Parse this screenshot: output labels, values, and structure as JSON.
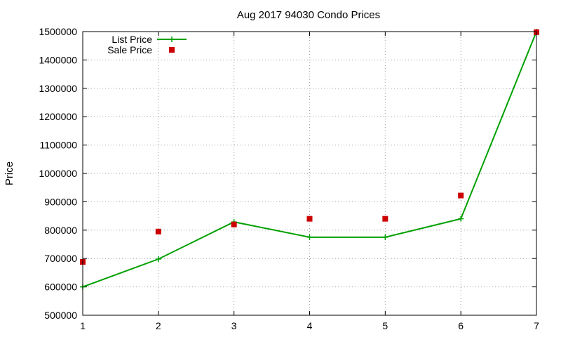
{
  "chart_data": {
    "type": "line",
    "title": "Aug 2017 94030 Condo Prices",
    "xlabel": "",
    "ylabel": "Price",
    "x": [
      1,
      2,
      3,
      4,
      5,
      6,
      7
    ],
    "xlim": [
      1,
      7
    ],
    "ylim": [
      500000,
      1500000
    ],
    "x_ticks": [
      1,
      2,
      3,
      4,
      5,
      6,
      7
    ],
    "y_ticks": [
      500000,
      600000,
      700000,
      800000,
      900000,
      1000000,
      1100000,
      1200000,
      1300000,
      1400000,
      1500000
    ],
    "grid": true,
    "legend": "top-left",
    "series": [
      {
        "name": "List Price",
        "style": "line+cross",
        "color": "#00a000",
        "values": [
          600000,
          698000,
          829000,
          775000,
          775000,
          840000,
          1500000
        ]
      },
      {
        "name": "Sale Price",
        "style": "square-points",
        "color": "#cc0000",
        "values": [
          688000,
          795000,
          820000,
          840000,
          840000,
          922000,
          1498000
        ]
      }
    ]
  }
}
